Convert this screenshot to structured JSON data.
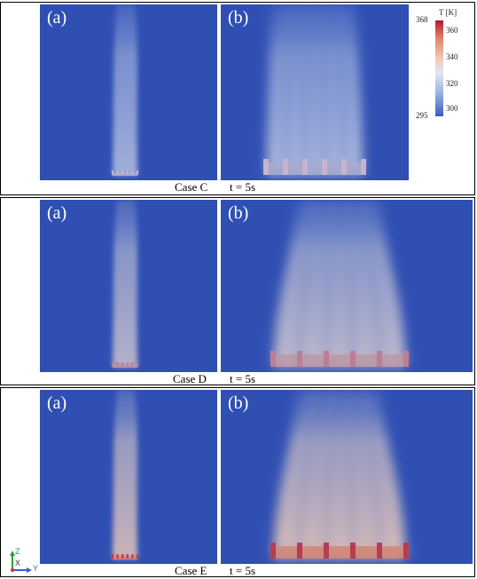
{
  "panel_labels": {
    "a": "(a)",
    "b": "(b)"
  },
  "cases": [
    {
      "name": "Case C",
      "time": "t = 5s",
      "intensity": 0.15
    },
    {
      "name": "Case D",
      "time": "t = 5s",
      "intensity": 0.45
    },
    {
      "name": "Case E",
      "time": "t = 5s",
      "intensity": 0.8
    }
  ],
  "colorbar": {
    "title": "T [K]",
    "min_label": "295",
    "max_label": "368",
    "ticks": [
      "360",
      "340",
      "320",
      "300"
    ],
    "min": 295,
    "max": 368
  },
  "axes": {
    "z": "Z",
    "x": "X",
    "y": "Y"
  },
  "colors": {
    "background_field": "#2f4fb3",
    "hot": "#b2182b",
    "warm": "#e8b6a0"
  }
}
